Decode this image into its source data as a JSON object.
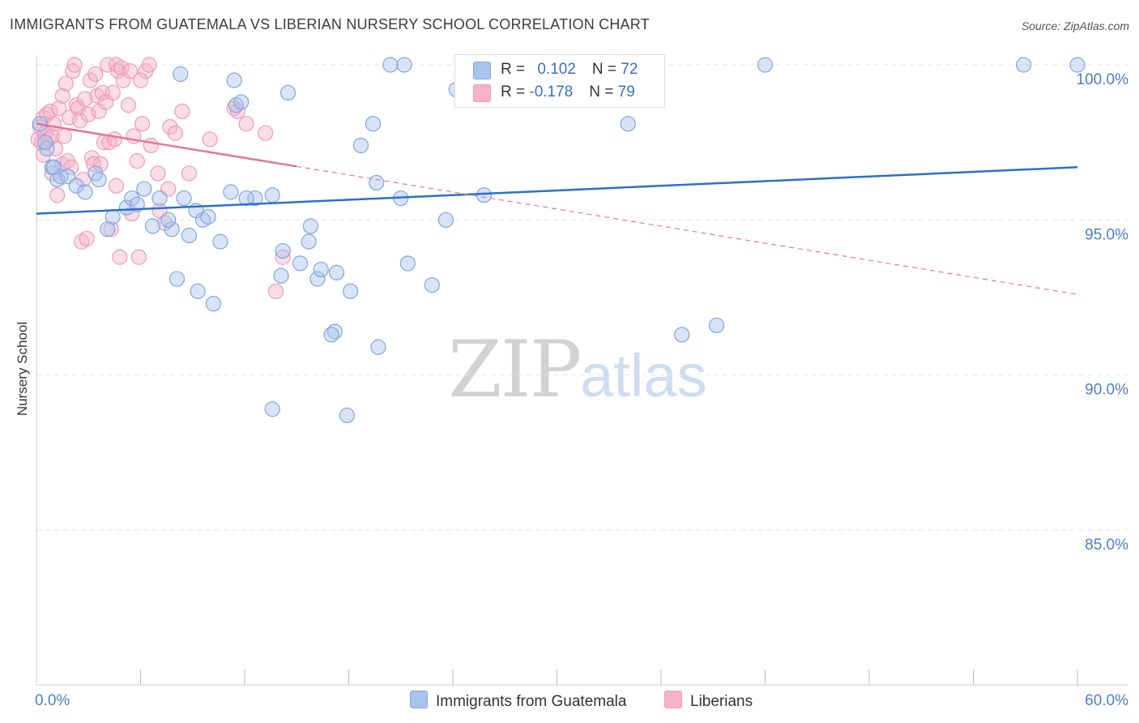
{
  "title": "IMMIGRANTS FROM GUATEMALA VS LIBERIAN NURSERY SCHOOL CORRELATION CHART",
  "source": "Source: ZipAtlas.com",
  "watermark": {
    "zip": "ZIP",
    "atlas": "atlas"
  },
  "legend_top": {
    "series1": {
      "r_label": "R = ",
      "r_value": "0.102",
      "n_label": "N = ",
      "n_value": "72"
    },
    "series2": {
      "r_label": "R = ",
      "r_value": "-0.178",
      "n_label": "N = ",
      "n_value": "79"
    }
  },
  "legend_bottom": {
    "series1": "Immigrants from Guatemala",
    "series2": "Liberians"
  },
  "colors": {
    "blue_fill": "#a9c4ec",
    "blue_stroke": "#7ea6e0",
    "blue_line": "#2b6fd0",
    "pink_fill": "#f4b3c8",
    "pink_stroke": "#ee9ab6",
    "pink_line": "#e8739b",
    "tick_text": "#4a7fcb",
    "grid": "#e6e6e6"
  },
  "chart_data": {
    "type": "scatter",
    "title": "IMMIGRANTS FROM GUATEMALA VS LIBERIAN NURSERY SCHOOL CORRELATION CHART",
    "xlabel": "",
    "ylabel": "Nursery School",
    "xlim": [
      0,
      60
    ],
    "ylim": [
      80.5,
      100.8
    ],
    "x_tick_labels": [
      "0.0%",
      "60.0%"
    ],
    "y_ticks": [
      85,
      90,
      95,
      100
    ],
    "y_tick_labels": [
      "85.0%",
      "90.0%",
      "95.0%",
      "100.0%"
    ],
    "x_minor_ticks": [
      6,
      12,
      18,
      24,
      30,
      36,
      42,
      48,
      54,
      60
    ],
    "series": [
      {
        "name": "Immigrants from Guatemala",
        "R": 0.102,
        "N": 72,
        "trend": {
          "x": [
            0,
            60
          ],
          "y": [
            95.2,
            96.7
          ],
          "dashed_after": null
        },
        "points": [
          [
            0.2,
            98.1
          ],
          [
            0.6,
            97.3
          ],
          [
            0.9,
            96.7
          ],
          [
            1.2,
            96.3
          ],
          [
            1.4,
            96.4
          ],
          [
            1.8,
            96.4
          ],
          [
            2.3,
            96.1
          ],
          [
            3.4,
            96.5
          ],
          [
            2.8,
            95.9
          ],
          [
            3.6,
            96.3
          ],
          [
            4.4,
            95.1
          ],
          [
            4.1,
            94.7
          ],
          [
            5.2,
            95.4
          ],
          [
            5.5,
            95.7
          ],
          [
            5.8,
            95.5
          ],
          [
            6.2,
            96.0
          ],
          [
            6.7,
            94.8
          ],
          [
            7.8,
            94.7
          ],
          [
            8.8,
            94.5
          ],
          [
            7.1,
            95.7
          ],
          [
            7.6,
            95.0
          ],
          [
            8.5,
            95.7
          ],
          [
            9.2,
            95.3
          ],
          [
            9.6,
            95.0
          ],
          [
            10.6,
            94.3
          ],
          [
            9.9,
            95.1
          ],
          [
            11.2,
            95.9
          ],
          [
            11.5,
            98.7
          ],
          [
            11.8,
            98.8
          ],
          [
            12.6,
            95.7
          ],
          [
            12.1,
            95.7
          ],
          [
            13.6,
            95.8
          ],
          [
            14.2,
            94.0
          ],
          [
            14.1,
            93.2
          ],
          [
            14.5,
            99.1
          ],
          [
            15.2,
            93.6
          ],
          [
            15.8,
            94.8
          ],
          [
            15.7,
            94.3
          ],
          [
            16.2,
            93.1
          ],
          [
            16.4,
            93.4
          ],
          [
            17.3,
            93.3
          ],
          [
            17.2,
            91.4
          ],
          [
            18.1,
            92.7
          ],
          [
            18.7,
            97.4
          ],
          [
            19.4,
            98.1
          ],
          [
            19.6,
            96.2
          ],
          [
            19.7,
            90.9
          ],
          [
            20.4,
            100.0
          ],
          [
            21.2,
            100.0
          ],
          [
            21.0,
            95.7
          ],
          [
            21.4,
            93.6
          ],
          [
            22.8,
            92.9
          ],
          [
            23.6,
            95.0
          ],
          [
            24.2,
            99.2
          ],
          [
            25.8,
            95.8
          ],
          [
            30.3,
            100.0
          ],
          [
            34.1,
            98.1
          ],
          [
            37.2,
            91.3
          ],
          [
            39.2,
            91.6
          ],
          [
            42.0,
            100.0
          ],
          [
            56.9,
            100.0
          ],
          [
            60.0,
            100.0
          ],
          [
            10.2,
            92.3
          ],
          [
            8.1,
            93.1
          ],
          [
            9.3,
            92.7
          ],
          [
            11.4,
            99.5
          ],
          [
            8.3,
            99.7
          ],
          [
            17.9,
            88.7
          ],
          [
            13.6,
            88.9
          ],
          [
            17.0,
            91.3
          ],
          [
            0.5,
            97.5
          ],
          [
            1.0,
            96.7
          ]
        ]
      },
      {
        "name": "Liberians",
        "R": -0.178,
        "N": 79,
        "trend": {
          "x": [
            0,
            60
          ],
          "y": [
            98.1,
            92.6
          ],
          "solid_until_x": 15
        },
        "points": [
          [
            0.1,
            97.6
          ],
          [
            0.2,
            98.0
          ],
          [
            0.3,
            97.5
          ],
          [
            0.4,
            98.3
          ],
          [
            0.5,
            97.8
          ],
          [
            0.6,
            98.4
          ],
          [
            0.7,
            97.6
          ],
          [
            0.8,
            98.5
          ],
          [
            0.9,
            97.7
          ],
          [
            1.0,
            98.1
          ],
          [
            1.1,
            97.3
          ],
          [
            1.3,
            98.6
          ],
          [
            1.5,
            99.0
          ],
          [
            1.5,
            96.8
          ],
          [
            1.6,
            97.7
          ],
          [
            1.7,
            99.4
          ],
          [
            1.8,
            96.9
          ],
          [
            1.9,
            98.3
          ],
          [
            2.0,
            96.7
          ],
          [
            2.1,
            99.8
          ],
          [
            2.2,
            100.0
          ],
          [
            2.3,
            98.7
          ],
          [
            2.4,
            98.6
          ],
          [
            2.5,
            98.2
          ],
          [
            2.6,
            94.3
          ],
          [
            2.7,
            96.3
          ],
          [
            2.8,
            98.9
          ],
          [
            3.0,
            98.4
          ],
          [
            3.1,
            99.5
          ],
          [
            3.2,
            97.0
          ],
          [
            3.3,
            96.8
          ],
          [
            3.4,
            99.7
          ],
          [
            3.5,
            99.0
          ],
          [
            3.6,
            98.5
          ],
          [
            3.8,
            99.1
          ],
          [
            3.9,
            97.5
          ],
          [
            4.0,
            98.8
          ],
          [
            4.1,
            100.0
          ],
          [
            4.2,
            97.5
          ],
          [
            4.3,
            94.7
          ],
          [
            4.4,
            99.1
          ],
          [
            4.5,
            97.6
          ],
          [
            4.6,
            100.0
          ],
          [
            4.7,
            99.8
          ],
          [
            4.8,
            93.8
          ],
          [
            4.9,
            99.9
          ],
          [
            5.0,
            99.5
          ],
          [
            5.3,
            98.7
          ],
          [
            5.4,
            99.8
          ],
          [
            5.6,
            97.7
          ],
          [
            5.8,
            96.9
          ],
          [
            5.9,
            93.8
          ],
          [
            6.1,
            98.1
          ],
          [
            6.3,
            99.8
          ],
          [
            6.5,
            100.0
          ],
          [
            6.6,
            97.4
          ],
          [
            7.0,
            96.5
          ],
          [
            7.4,
            94.9
          ],
          [
            7.6,
            96.0
          ],
          [
            7.7,
            98.0
          ],
          [
            8.0,
            97.8
          ],
          [
            8.4,
            98.5
          ],
          [
            10.0,
            97.6
          ],
          [
            11.4,
            98.6
          ],
          [
            11.6,
            98.5
          ],
          [
            12.1,
            98.1
          ],
          [
            13.2,
            97.8
          ],
          [
            13.8,
            92.7
          ],
          [
            14.2,
            93.8
          ],
          [
            6.0,
            99.5
          ],
          [
            5.5,
            95.2
          ],
          [
            4.6,
            96.1
          ],
          [
            3.7,
            96.8
          ],
          [
            2.9,
            94.4
          ],
          [
            8.8,
            96.5
          ],
          [
            7.1,
            95.3
          ],
          [
            1.2,
            95.8
          ],
          [
            0.4,
            97.1
          ],
          [
            0.9,
            96.5
          ]
        ]
      }
    ]
  },
  "axis_labels": {
    "y": "Nursery School"
  }
}
